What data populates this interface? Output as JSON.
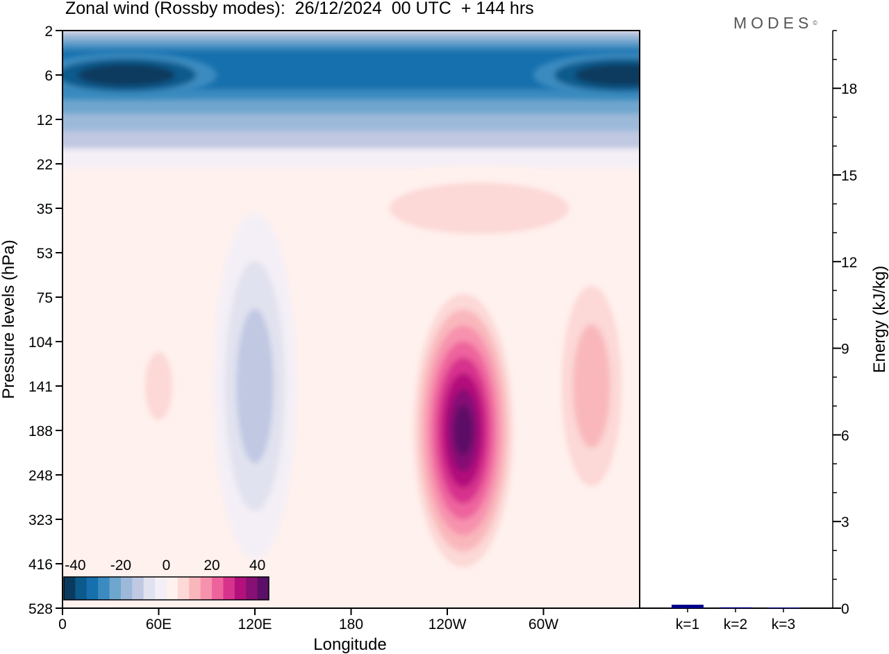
{
  "title": "Zonal wind (Rossby modes):  26/12/2024  00 UTC  + 144 hrs",
  "logo": {
    "text": "MODES",
    "mark": "©"
  },
  "chart_data": [
    {
      "type": "heatmap",
      "title": "Zonal wind (Rossby modes):  26/12/2024  00 UTC  + 144 hrs",
      "xlabel": "Longitude",
      "ylabel": "Pressure levels (hPa)",
      "x_ticks": [
        "0",
        "60E",
        "120E",
        "180",
        "120W",
        "60W"
      ],
      "x_tick_values": [
        0,
        60,
        120,
        180,
        240,
        300
      ],
      "xlim": [
        0,
        360
      ],
      "y_ticks": [
        "2",
        "6",
        "12",
        "22",
        "35",
        "53",
        "75",
        "104",
        "141",
        "188",
        "248",
        "323",
        "416",
        "528"
      ],
      "colorbar": {
        "tick_labels": [
          "-40",
          "-20",
          "0",
          "20",
          "40"
        ],
        "tick_values": [
          -40,
          -20,
          0,
          20,
          40
        ],
        "range": [
          -45,
          45
        ],
        "step": 5,
        "colors": [
          "#0b3a5f",
          "#0c5a8c",
          "#1670ad",
          "#3b8bc0",
          "#6ea6cd",
          "#9db9d9",
          "#c0c8e2",
          "#e1e2ef",
          "#f4eff6",
          "#fff1ee",
          "#fcd8d6",
          "#f9b7bc",
          "#f792ae",
          "#ee639d",
          "#d7338d",
          "#b3107b",
          "#861074",
          "#5b0f66"
        ]
      },
      "features": [
        {
          "kind": "easterly",
          "lon": 40,
          "level": 6,
          "value": -45
        },
        {
          "kind": "easterly",
          "lon": 350,
          "level": 6,
          "value": -45
        },
        {
          "kind": "westerly_jet",
          "lon": 250,
          "level": 188,
          "value": 45
        },
        {
          "kind": "westerly",
          "lon": 330,
          "level": 141,
          "value": 15
        },
        {
          "kind": "westerly",
          "lon": 60,
          "level": 141,
          "value": 10
        },
        {
          "kind": "easterly",
          "lon": 120,
          "level": 141,
          "value": -15
        },
        {
          "kind": "westerly",
          "lon": 260,
          "level": 35,
          "value": 10
        }
      ]
    },
    {
      "type": "bar",
      "categories": [
        "k=1",
        "k=2",
        "k=3"
      ],
      "values": [
        0.12,
        0.03,
        0.02
      ],
      "ylabel": "Energy (kJ/kg)",
      "ylim": [
        0,
        20
      ],
      "y_ticks": [
        "0",
        "3",
        "6",
        "9",
        "12",
        "15",
        "18"
      ],
      "y_tick_values": [
        0,
        3,
        6,
        9,
        12,
        15,
        18
      ],
      "bar_color": "#00008b"
    }
  ]
}
